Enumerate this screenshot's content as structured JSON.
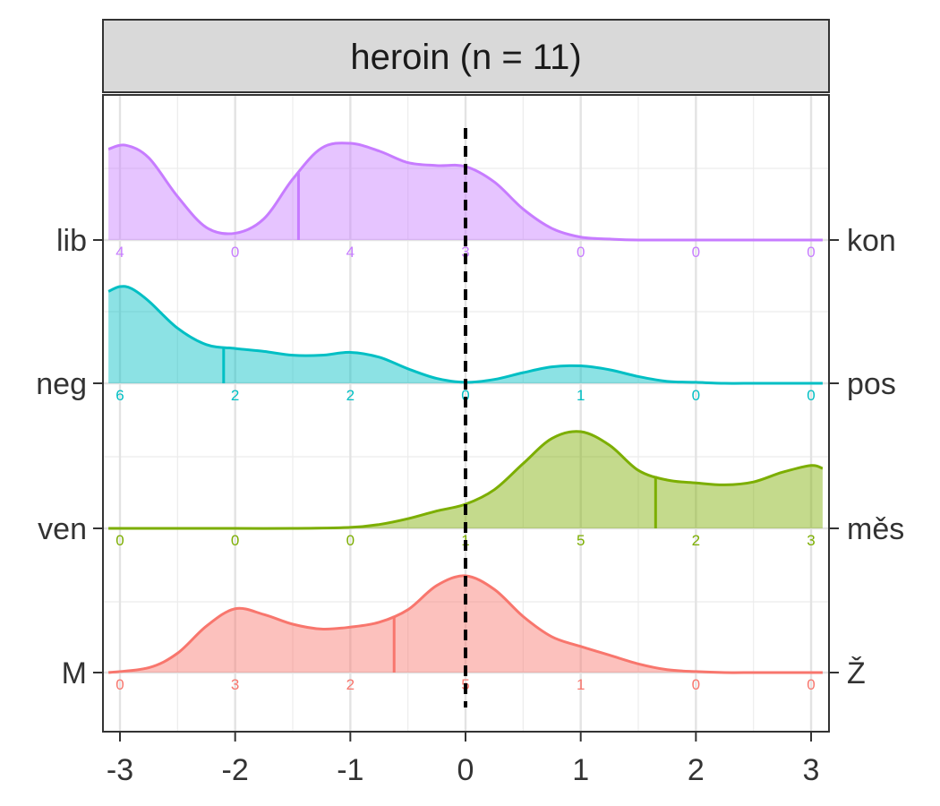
{
  "chart_data": {
    "type": "ridgeline",
    "title": "heroin (n = 11)",
    "xlabel": "",
    "ylabel": "",
    "xlim": [
      -3.1,
      3.1
    ],
    "x_ticks": [
      -3,
      -2,
      -1,
      0,
      1,
      2,
      3
    ],
    "x_tick_labels": [
      "-3",
      "-2",
      "-1",
      "0",
      "1",
      "2",
      "3"
    ],
    "reference_line_x": 0,
    "grid": true,
    "series": [
      {
        "left_label": "M",
        "right_label": "Ž",
        "color": "#F8766D",
        "median": -0.62,
        "counts": [
          0,
          3,
          2,
          5,
          1,
          0,
          0
        ],
        "density_x": [
          -3.1,
          -2.75,
          -2.5,
          -2.25,
          -2.0,
          -1.75,
          -1.5,
          -1.25,
          -1.0,
          -0.75,
          -0.5,
          -0.25,
          0.0,
          0.25,
          0.5,
          0.75,
          1.0,
          1.25,
          1.5,
          1.75,
          2.0,
          2.25,
          2.5,
          2.75,
          3.1
        ],
        "density_y": [
          0.0,
          0.05,
          0.2,
          0.48,
          0.66,
          0.6,
          0.5,
          0.45,
          0.47,
          0.52,
          0.65,
          0.9,
          1.0,
          0.86,
          0.58,
          0.37,
          0.27,
          0.18,
          0.09,
          0.03,
          0.01,
          0.0,
          0.0,
          0.0,
          0.0
        ]
      },
      {
        "left_label": "ven",
        "right_label": "měs",
        "color": "#7CAE00",
        "median": 1.65,
        "counts": [
          0,
          0,
          0,
          1,
          5,
          2,
          3
        ],
        "density_x": [
          -3.1,
          -2.5,
          -2.0,
          -1.5,
          -1.0,
          -0.75,
          -0.5,
          -0.25,
          0.0,
          0.25,
          0.5,
          0.75,
          1.0,
          1.25,
          1.5,
          1.75,
          2.0,
          2.25,
          2.5,
          2.75,
          3.0,
          3.1
        ],
        "density_y": [
          0.0,
          0.0,
          0.0,
          0.0,
          0.01,
          0.04,
          0.1,
          0.18,
          0.25,
          0.4,
          0.67,
          0.93,
          1.0,
          0.86,
          0.6,
          0.5,
          0.47,
          0.45,
          0.48,
          0.58,
          0.65,
          0.62
        ]
      },
      {
        "left_label": "neg",
        "right_label": "pos",
        "color": "#00BFC4",
        "median": -2.1,
        "counts": [
          6,
          2,
          2,
          0,
          1,
          0,
          0
        ],
        "density_x": [
          -3.1,
          -3.0,
          -2.9,
          -2.75,
          -2.5,
          -2.25,
          -2.0,
          -1.75,
          -1.5,
          -1.25,
          -1.0,
          -0.75,
          -0.5,
          -0.25,
          0.0,
          0.25,
          0.5,
          0.75,
          1.0,
          1.25,
          1.5,
          1.75,
          2.0,
          2.25,
          2.5,
          2.75,
          3.1
        ],
        "density_y": [
          0.95,
          1.0,
          0.98,
          0.85,
          0.57,
          0.4,
          0.36,
          0.33,
          0.29,
          0.29,
          0.32,
          0.27,
          0.15,
          0.05,
          0.01,
          0.04,
          0.11,
          0.17,
          0.18,
          0.14,
          0.07,
          0.02,
          0.01,
          0.0,
          0.0,
          0.0,
          0.0
        ]
      },
      {
        "left_label": "lib",
        "right_label": "kon",
        "color": "#C77CFF",
        "median": -1.45,
        "counts": [
          4,
          0,
          4,
          3,
          0,
          0,
          0
        ],
        "density_x": [
          -3.1,
          -2.95,
          -2.75,
          -2.5,
          -2.25,
          -2.0,
          -1.75,
          -1.5,
          -1.25,
          -1.0,
          -0.75,
          -0.5,
          -0.25,
          0.0,
          0.25,
          0.5,
          0.75,
          1.0,
          1.25,
          1.5,
          2.0,
          2.5,
          3.1
        ],
        "density_y": [
          0.94,
          0.98,
          0.85,
          0.45,
          0.13,
          0.07,
          0.22,
          0.63,
          0.95,
          1.0,
          0.92,
          0.8,
          0.77,
          0.76,
          0.6,
          0.32,
          0.12,
          0.03,
          0.01,
          0.0,
          0.0,
          0.0,
          0.0
        ]
      }
    ]
  }
}
